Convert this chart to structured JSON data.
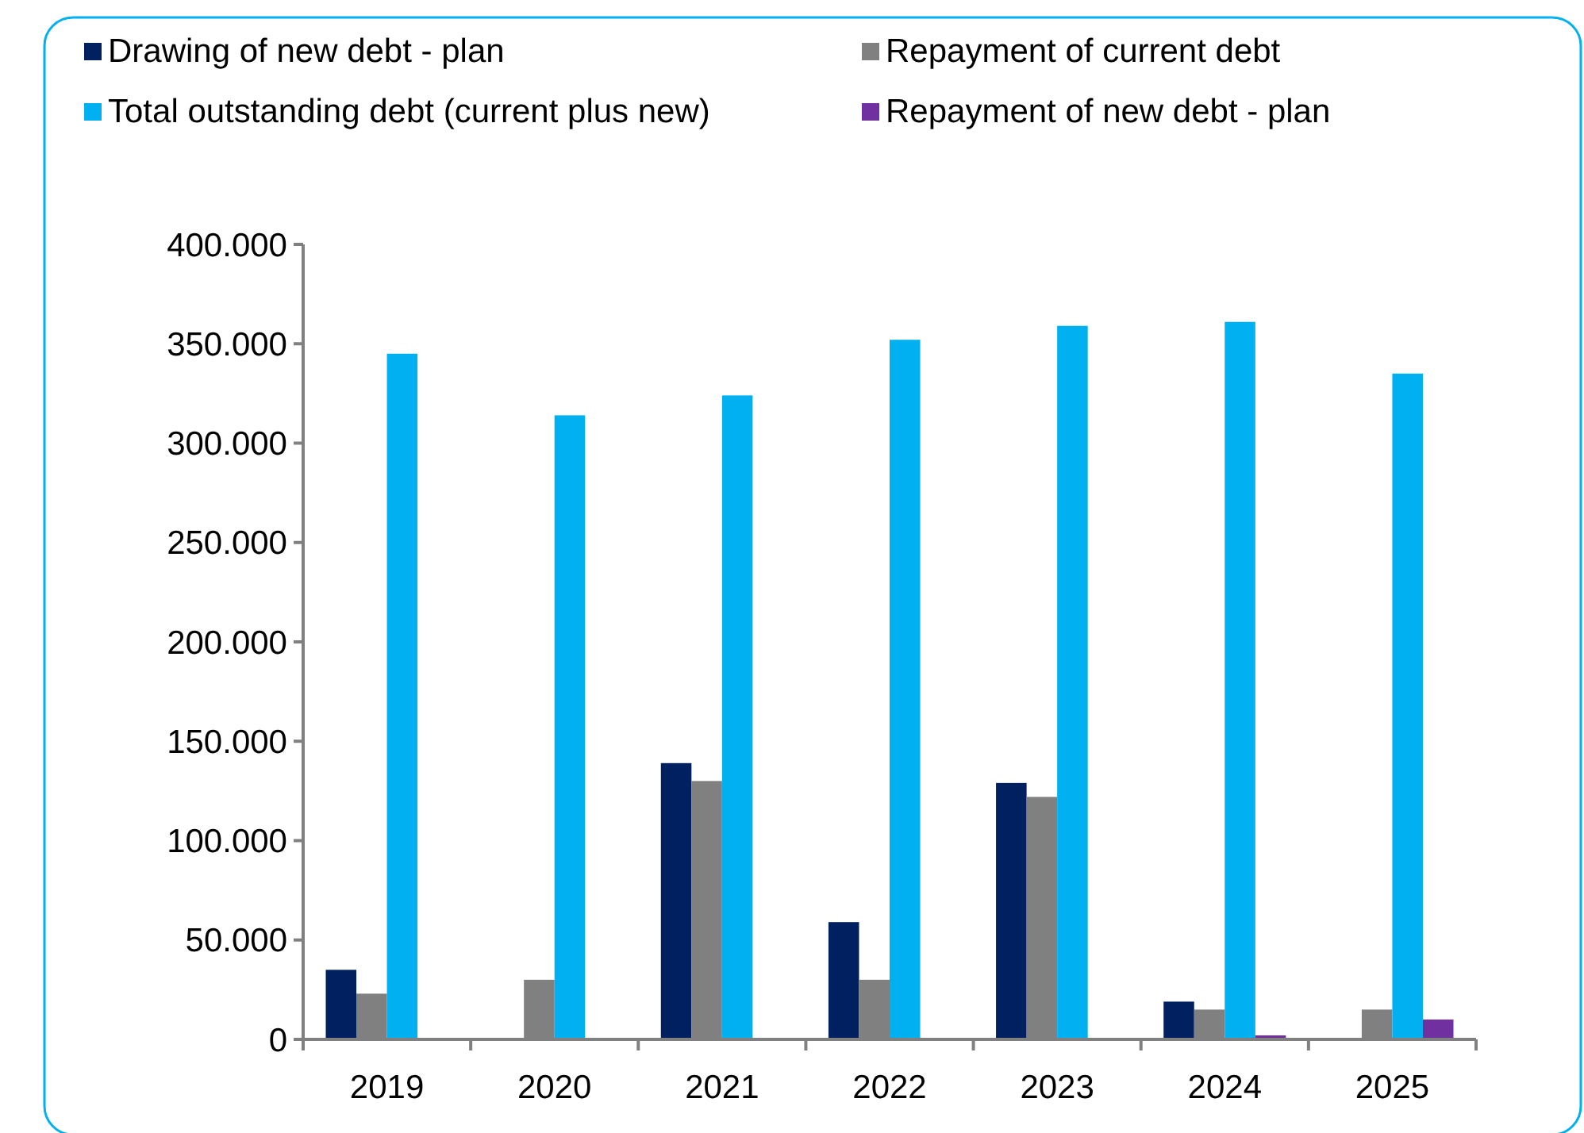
{
  "chart_data": {
    "type": "bar",
    "categories": [
      "2019",
      "2020",
      "2021",
      "2022",
      "2023",
      "2024",
      "2025"
    ],
    "series": [
      {
        "name": "Drawing of new debt - plan",
        "color": "#002060",
        "values": [
          35000,
          null,
          139000,
          59000,
          129000,
          19000,
          null
        ]
      },
      {
        "name": "Repayment of current debt",
        "color": "#808080",
        "values": [
          23000,
          30000,
          130000,
          30000,
          122000,
          15000,
          15000
        ]
      },
      {
        "name": "Total outstanding debt (current plus new)",
        "color": "#00b0f0",
        "values": [
          345000,
          314000,
          324000,
          352000,
          359000,
          361000,
          335000
        ]
      },
      {
        "name": "Repayment of new debt - plan",
        "color": "#7030a0",
        "values": [
          null,
          null,
          null,
          null,
          null,
          2000,
          10000
        ]
      }
    ],
    "ylim": [
      0,
      400000
    ],
    "yticks": [
      {
        "value": 0,
        "label": "0"
      },
      {
        "value": 50000,
        "label": "50.000"
      },
      {
        "value": 100000,
        "label": "100.000"
      },
      {
        "value": 150000,
        "label": "150.000"
      },
      {
        "value": 200000,
        "label": "200.000"
      },
      {
        "value": 250000,
        "label": "250.000"
      },
      {
        "value": 300000,
        "label": "300.000"
      },
      {
        "value": 350000,
        "label": "350.000"
      },
      {
        "value": 400000,
        "label": "400.000"
      }
    ],
    "grid": false,
    "legend": "top"
  }
}
